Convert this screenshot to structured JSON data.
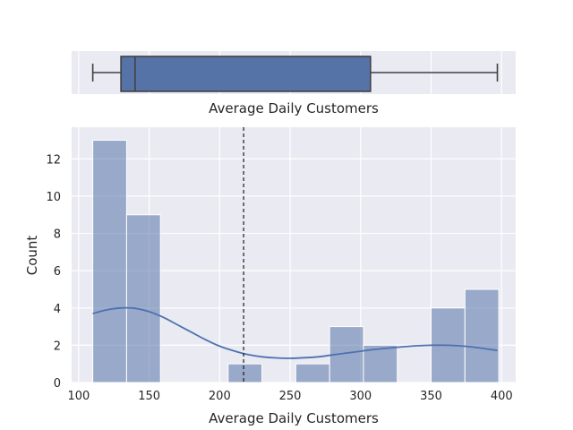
{
  "chart_data": [
    {
      "type": "box",
      "xlabel": "Average Daily Customers",
      "xlim": [
        95,
        410
      ],
      "box": {
        "whisker_low": 110,
        "q1": 130,
        "median": 140,
        "q3": 307,
        "whisker_high": 397
      },
      "x_gridlines": [
        100,
        150,
        200,
        250,
        300,
        350,
        400
      ],
      "color": "#5673a8"
    },
    {
      "type": "histogram",
      "xlabel": "Average Daily Customers",
      "ylabel": "Count",
      "xlim": [
        95,
        410
      ],
      "ylim": [
        0,
        13.7
      ],
      "x_ticks": [
        "100",
        "150",
        "200",
        "250",
        "300",
        "350",
        "400"
      ],
      "y_ticks": [
        "0",
        "2",
        "4",
        "6",
        "8",
        "10",
        "12"
      ],
      "x_tick_values": [
        100,
        150,
        200,
        250,
        300,
        350,
        400
      ],
      "y_tick_values": [
        0,
        2,
        4,
        6,
        8,
        10,
        12
      ],
      "bins": [
        {
          "x0": 110,
          "x1": 134,
          "count": 13
        },
        {
          "x0": 134,
          "x1": 158,
          "count": 9
        },
        {
          "x0": 158,
          "x1": 182,
          "count": 0
        },
        {
          "x0": 182,
          "x1": 206,
          "count": 0
        },
        {
          "x0": 206,
          "x1": 230,
          "count": 1
        },
        {
          "x0": 230,
          "x1": 254,
          "count": 0
        },
        {
          "x0": 254,
          "x1": 278,
          "count": 1
        },
        {
          "x0": 278,
          "x1": 302,
          "count": 3
        },
        {
          "x0": 302,
          "x1": 326,
          "count": 2
        },
        {
          "x0": 326,
          "x1": 350,
          "count": 0
        },
        {
          "x0": 350,
          "x1": 374,
          "count": 4
        },
        {
          "x0": 374,
          "x1": 398,
          "count": 5
        }
      ],
      "kde": {
        "x": [
          110,
          120,
          130,
          140,
          150,
          160,
          170,
          180,
          190,
          200,
          210,
          220,
          230,
          240,
          250,
          260,
          270,
          280,
          290,
          300,
          310,
          320,
          330,
          340,
          350,
          360,
          370,
          380,
          390,
          397
        ],
        "y": [
          3.7,
          3.9,
          4.0,
          3.98,
          3.8,
          3.5,
          3.1,
          2.7,
          2.3,
          1.95,
          1.7,
          1.5,
          1.38,
          1.32,
          1.3,
          1.33,
          1.38,
          1.48,
          1.58,
          1.68,
          1.78,
          1.85,
          1.92,
          1.97,
          2.0,
          2.0,
          1.97,
          1.9,
          1.8,
          1.72
        ]
      },
      "mean_line": 217,
      "bar_color": "#5673a8",
      "bar_opacity": 0.55,
      "kde_color": "#4c72b0",
      "grid": true,
      "background": "#eaeaf2"
    }
  ]
}
